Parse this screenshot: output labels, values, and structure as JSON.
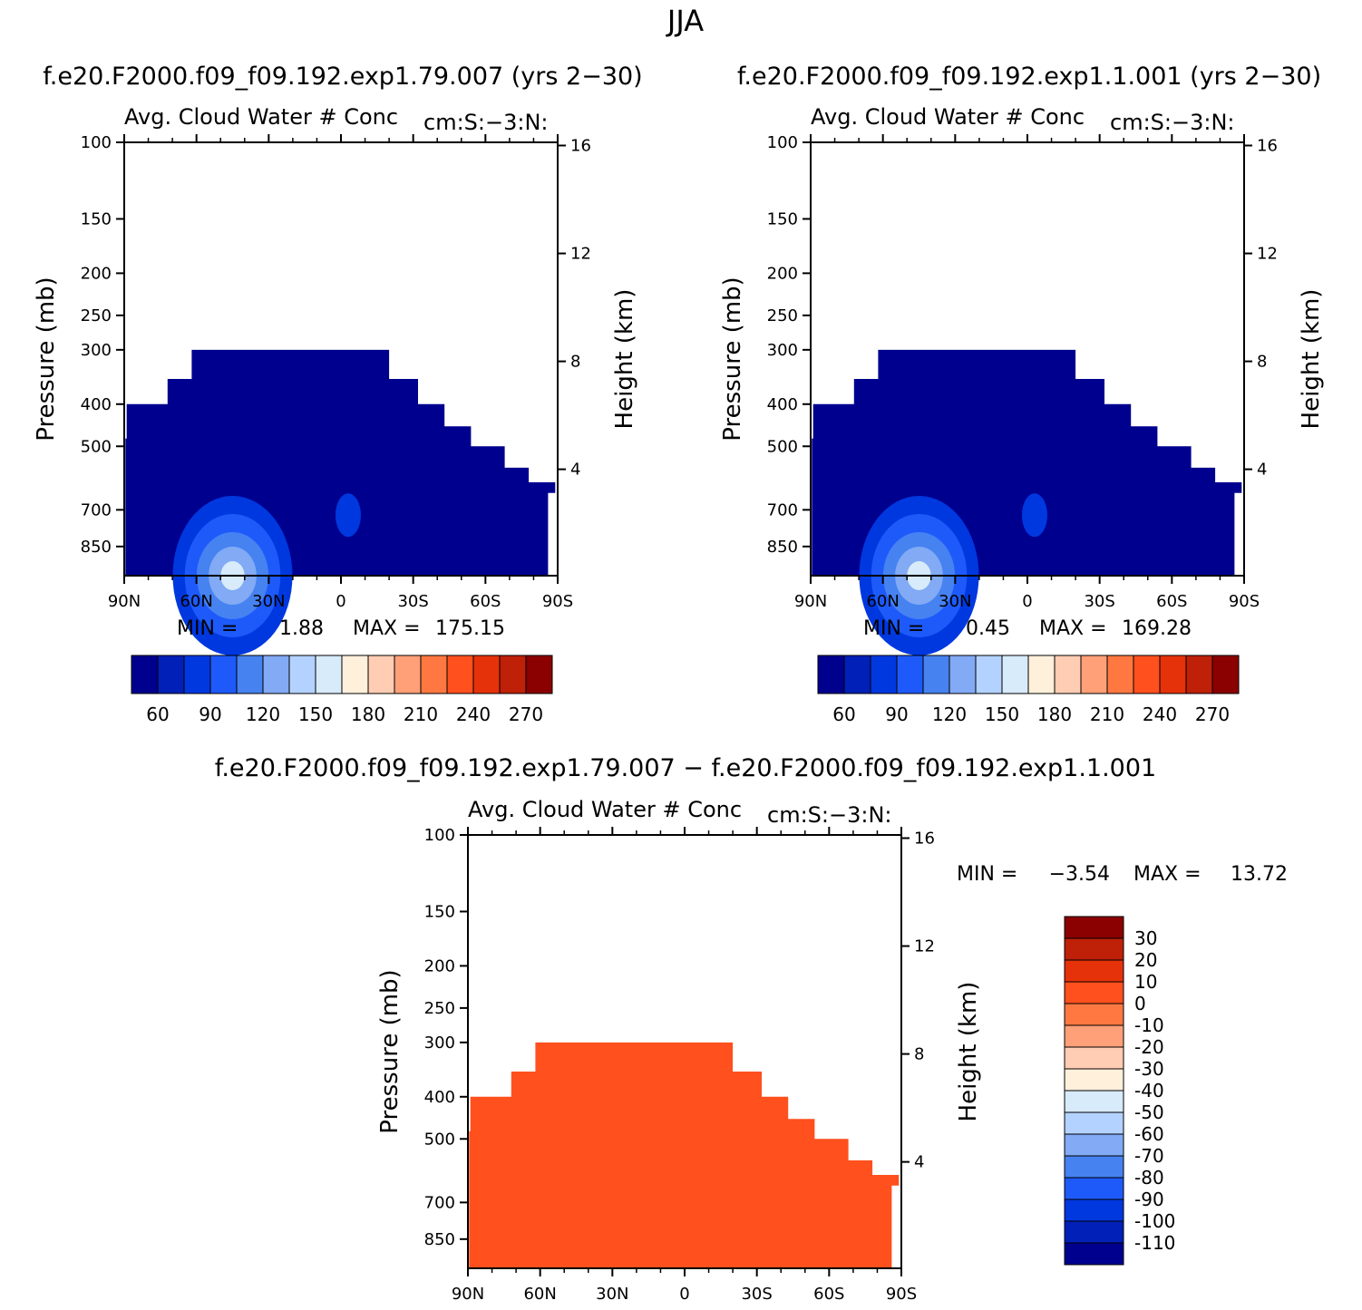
{
  "figure": {
    "title": "JJA",
    "diff_title": "f.e20.F2000.f09_f09.192.exp1.79.007 − f.e20.F2000.f09_f09.192.exp1.1.001"
  },
  "panels": [
    {
      "run_title": "f.e20.F2000.f09_f09.192.exp1.79.007 (yrs 2−30)",
      "var_title": "Avg. Cloud Water # Conc",
      "units": "cm:S:−3:N:",
      "min_label": "MIN =",
      "min_value": "1.88",
      "max_label": "MAX =",
      "max_value": "175.15",
      "fill_color": "#00008f"
    },
    {
      "run_title": "f.e20.F2000.f09_f09.192.exp1.1.001 (yrs 2−30)",
      "var_title": "Avg. Cloud Water # Conc",
      "units": "cm:S:−3:N:",
      "min_label": "MIN =",
      "min_value": "0.45",
      "max_label": "MAX =",
      "max_value": "169.28",
      "fill_color": "#00008f"
    },
    {
      "var_title": "Avg. Cloud Water # Conc",
      "units": "cm:S:−3:N:",
      "min_label": "MIN =",
      "min_value": "−3.54",
      "max_label": "MAX =",
      "max_value": "13.72",
      "fill_color": "#ff501e"
    }
  ],
  "chart_data": [
    {
      "type": "heatmap",
      "title": "Avg. Cloud Water # Conc",
      "xlabel": "",
      "ylabel": "Pressure (mb)",
      "ylabel_right": "Height (km)",
      "x_ticks": [
        "90N",
        "60N",
        "30N",
        "0",
        "30S",
        "60S",
        "90S"
      ],
      "x_range": [
        90,
        -90
      ],
      "y_ticks": [
        100,
        150,
        200,
        250,
        300,
        400,
        500,
        700,
        850
      ],
      "y_range": [
        100,
        992
      ],
      "y_scale": "log",
      "right_ticks": [
        4,
        8,
        12,
        16
      ],
      "min": 1.88,
      "max": 175.15,
      "colorbar_levels": [
        60,
        90,
        120,
        150,
        180,
        210,
        240,
        270
      ]
    },
    {
      "type": "heatmap",
      "title": "Avg. Cloud Water # Conc",
      "xlabel": "",
      "ylabel": "Pressure (mb)",
      "ylabel_right": "Height (km)",
      "x_ticks": [
        "90N",
        "60N",
        "30N",
        "0",
        "30S",
        "60S",
        "90S"
      ],
      "x_range": [
        90,
        -90
      ],
      "y_ticks": [
        100,
        150,
        200,
        250,
        300,
        400,
        500,
        700,
        850
      ],
      "y_range": [
        100,
        992
      ],
      "y_scale": "log",
      "right_ticks": [
        4,
        8,
        12,
        16
      ],
      "min": 0.45,
      "max": 169.28,
      "colorbar_levels": [
        60,
        90,
        120,
        150,
        180,
        210,
        240,
        270
      ]
    },
    {
      "type": "heatmap",
      "title": "Avg. Cloud Water # Conc",
      "xlabel": "",
      "ylabel": "Pressure (mb)",
      "ylabel_right": "Height (km)",
      "x_ticks": [
        "90N",
        "60N",
        "30N",
        "0",
        "30S",
        "60S",
        "90S"
      ],
      "x_range": [
        90,
        -90
      ],
      "y_ticks": [
        100,
        150,
        200,
        250,
        300,
        400,
        500,
        700,
        850
      ],
      "y_range": [
        100,
        992
      ],
      "y_scale": "log",
      "right_ticks": [
        4,
        8,
        12,
        16
      ],
      "min": -3.54,
      "max": 13.72,
      "colorbar_levels": [
        30,
        20,
        10,
        0,
        -10,
        -20,
        -30,
        -40,
        -50,
        -60,
        -70,
        -80,
        -90,
        -100,
        -110
      ]
    }
  ],
  "colorbars": {
    "sequential_colors": [
      "#00008f",
      "#0020b8",
      "#0038e0",
      "#1e5afa",
      "#4682f0",
      "#82aaf5",
      "#b4d2ff",
      "#d7ebfa",
      "#fff0dc",
      "#ffcdb4",
      "#ffa078",
      "#ff7841",
      "#ff501e",
      "#e6320a",
      "#be2008",
      "#8b0000"
    ],
    "diverging_colors": [
      "#8b0000",
      "#be2008",
      "#e6320a",
      "#ff501e",
      "#ff7841",
      "#ffa078",
      "#ffcdb4",
      "#fff0dc",
      "#d7ebfa",
      "#b4d2ff",
      "#82aaf5",
      "#4682f0",
      "#1e5afa",
      "#0038e0",
      "#0020b8",
      "#00008f"
    ]
  }
}
